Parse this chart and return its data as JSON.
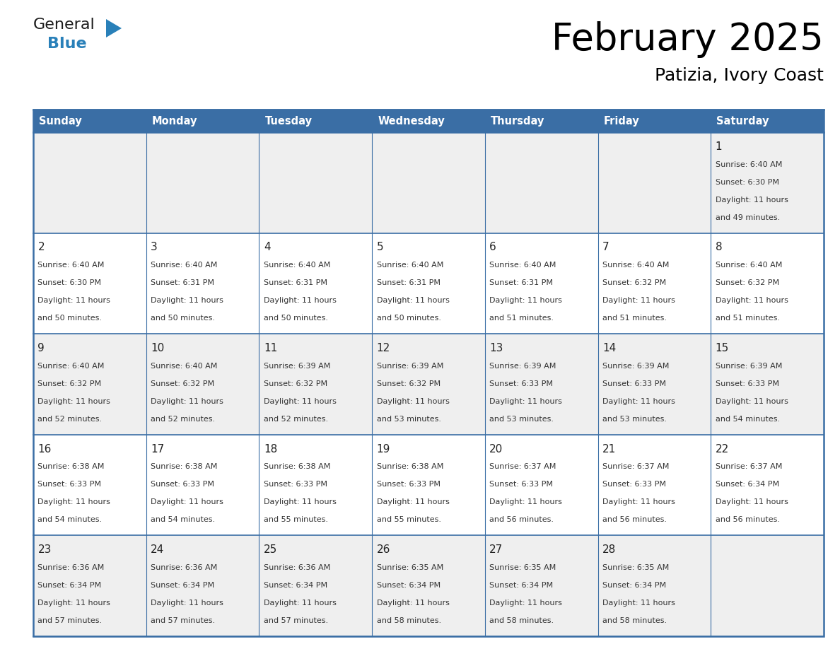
{
  "title": "February 2025",
  "subtitle": "Patizia, Ivory Coast",
  "days_of_week": [
    "Sunday",
    "Monday",
    "Tuesday",
    "Wednesday",
    "Thursday",
    "Friday",
    "Saturday"
  ],
  "header_bg": "#3a6ea5",
  "header_text": "#FFFFFF",
  "cell_bg_light": "#EFEFEF",
  "cell_bg_white": "#FFFFFF",
  "border_color": "#3a6ea5",
  "day_num_color": "#222222",
  "info_color": "#333333",
  "calendar_data": [
    [
      null,
      null,
      null,
      null,
      null,
      null,
      {
        "day": 1,
        "sunrise": "6:40 AM",
        "sunset": "6:30 PM",
        "daylight": "11 hours",
        "daylight2": "and 49 minutes."
      }
    ],
    [
      {
        "day": 2,
        "sunrise": "6:40 AM",
        "sunset": "6:30 PM",
        "daylight": "11 hours",
        "daylight2": "and 50 minutes."
      },
      {
        "day": 3,
        "sunrise": "6:40 AM",
        "sunset": "6:31 PM",
        "daylight": "11 hours",
        "daylight2": "and 50 minutes."
      },
      {
        "day": 4,
        "sunrise": "6:40 AM",
        "sunset": "6:31 PM",
        "daylight": "11 hours",
        "daylight2": "and 50 minutes."
      },
      {
        "day": 5,
        "sunrise": "6:40 AM",
        "sunset": "6:31 PM",
        "daylight": "11 hours",
        "daylight2": "and 50 minutes."
      },
      {
        "day": 6,
        "sunrise": "6:40 AM",
        "sunset": "6:31 PM",
        "daylight": "11 hours",
        "daylight2": "and 51 minutes."
      },
      {
        "day": 7,
        "sunrise": "6:40 AM",
        "sunset": "6:32 PM",
        "daylight": "11 hours",
        "daylight2": "and 51 minutes."
      },
      {
        "day": 8,
        "sunrise": "6:40 AM",
        "sunset": "6:32 PM",
        "daylight": "11 hours",
        "daylight2": "and 51 minutes."
      }
    ],
    [
      {
        "day": 9,
        "sunrise": "6:40 AM",
        "sunset": "6:32 PM",
        "daylight": "11 hours",
        "daylight2": "and 52 minutes."
      },
      {
        "day": 10,
        "sunrise": "6:40 AM",
        "sunset": "6:32 PM",
        "daylight": "11 hours",
        "daylight2": "and 52 minutes."
      },
      {
        "day": 11,
        "sunrise": "6:39 AM",
        "sunset": "6:32 PM",
        "daylight": "11 hours",
        "daylight2": "and 52 minutes."
      },
      {
        "day": 12,
        "sunrise": "6:39 AM",
        "sunset": "6:32 PM",
        "daylight": "11 hours",
        "daylight2": "and 53 minutes."
      },
      {
        "day": 13,
        "sunrise": "6:39 AM",
        "sunset": "6:33 PM",
        "daylight": "11 hours",
        "daylight2": "and 53 minutes."
      },
      {
        "day": 14,
        "sunrise": "6:39 AM",
        "sunset": "6:33 PM",
        "daylight": "11 hours",
        "daylight2": "and 53 minutes."
      },
      {
        "day": 15,
        "sunrise": "6:39 AM",
        "sunset": "6:33 PM",
        "daylight": "11 hours",
        "daylight2": "and 54 minutes."
      }
    ],
    [
      {
        "day": 16,
        "sunrise": "6:38 AM",
        "sunset": "6:33 PM",
        "daylight": "11 hours",
        "daylight2": "and 54 minutes."
      },
      {
        "day": 17,
        "sunrise": "6:38 AM",
        "sunset": "6:33 PM",
        "daylight": "11 hours",
        "daylight2": "and 54 minutes."
      },
      {
        "day": 18,
        "sunrise": "6:38 AM",
        "sunset": "6:33 PM",
        "daylight": "11 hours",
        "daylight2": "and 55 minutes."
      },
      {
        "day": 19,
        "sunrise": "6:38 AM",
        "sunset": "6:33 PM",
        "daylight": "11 hours",
        "daylight2": "and 55 minutes."
      },
      {
        "day": 20,
        "sunrise": "6:37 AM",
        "sunset": "6:33 PM",
        "daylight": "11 hours",
        "daylight2": "and 56 minutes."
      },
      {
        "day": 21,
        "sunrise": "6:37 AM",
        "sunset": "6:33 PM",
        "daylight": "11 hours",
        "daylight2": "and 56 minutes."
      },
      {
        "day": 22,
        "sunrise": "6:37 AM",
        "sunset": "6:34 PM",
        "daylight": "11 hours",
        "daylight2": "and 56 minutes."
      }
    ],
    [
      {
        "day": 23,
        "sunrise": "6:36 AM",
        "sunset": "6:34 PM",
        "daylight": "11 hours",
        "daylight2": "and 57 minutes."
      },
      {
        "day": 24,
        "sunrise": "6:36 AM",
        "sunset": "6:34 PM",
        "daylight": "11 hours",
        "daylight2": "and 57 minutes."
      },
      {
        "day": 25,
        "sunrise": "6:36 AM",
        "sunset": "6:34 PM",
        "daylight": "11 hours",
        "daylight2": "and 57 minutes."
      },
      {
        "day": 26,
        "sunrise": "6:35 AM",
        "sunset": "6:34 PM",
        "daylight": "11 hours",
        "daylight2": "and 58 minutes."
      },
      {
        "day": 27,
        "sunrise": "6:35 AM",
        "sunset": "6:34 PM",
        "daylight": "11 hours",
        "daylight2": "and 58 minutes."
      },
      {
        "day": 28,
        "sunrise": "6:35 AM",
        "sunset": "6:34 PM",
        "daylight": "11 hours",
        "daylight2": "and 58 minutes."
      },
      null
    ]
  ]
}
